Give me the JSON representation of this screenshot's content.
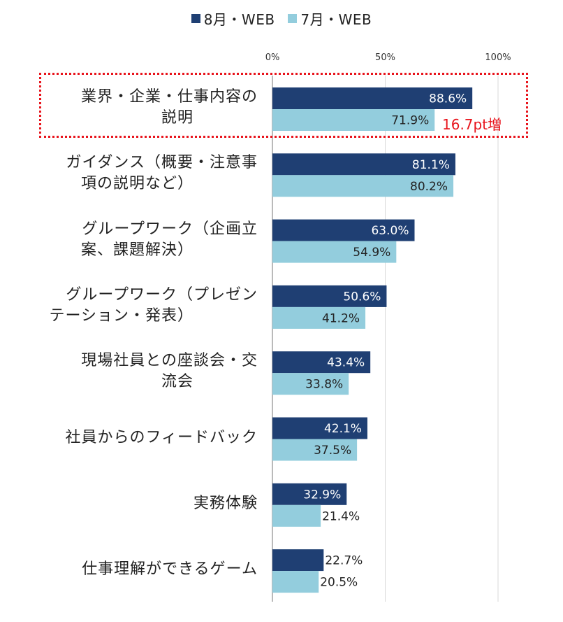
{
  "chart_data": {
    "type": "bar",
    "orientation": "horizontal",
    "categories": [
      [
        "業界・企業・仕事内容の",
        "説明"
      ],
      [
        "ガイダンス（概要・注意事",
        "項の説明など）"
      ],
      [
        "グループワーク（企画立",
        "案、課題解決）"
      ],
      [
        "グループワーク（プレゼン",
        "テーション・発表）"
      ],
      [
        "現場社員との座談会・交",
        "流会"
      ],
      [
        "社員からのフィードバック"
      ],
      [
        "実務体験"
      ],
      [
        "仕事理解ができるゲーム"
      ]
    ],
    "series": [
      {
        "name": "8月・WEB",
        "color": "#1f3f73",
        "values": [
          88.6,
          81.1,
          63.0,
          50.6,
          43.4,
          42.1,
          32.9,
          22.7
        ],
        "labels": [
          "88.6%",
          "81.1%",
          "63.0%",
          "50.6%",
          "43.4%",
          "42.1%",
          "32.9%",
          "22.7%"
        ]
      },
      {
        "name": "7月・WEB",
        "color": "#93cddd",
        "values": [
          71.9,
          80.2,
          54.9,
          41.2,
          33.8,
          37.5,
          21.4,
          20.5
        ],
        "labels": [
          "71.9%",
          "80.2%",
          "54.9%",
          "41.2%",
          "33.8%",
          "37.5%",
          "21.4%",
          "20.5%"
        ]
      }
    ],
    "xlim": [
      0,
      100
    ],
    "ticks": [
      0,
      50,
      100
    ],
    "tick_labels": [
      "0%",
      "50%",
      "100%"
    ],
    "grid": true,
    "legend_position": "top-center",
    "annotation": {
      "text": "16.7pt増",
      "color": "#e8141c",
      "target_category_index": 0
    }
  }
}
